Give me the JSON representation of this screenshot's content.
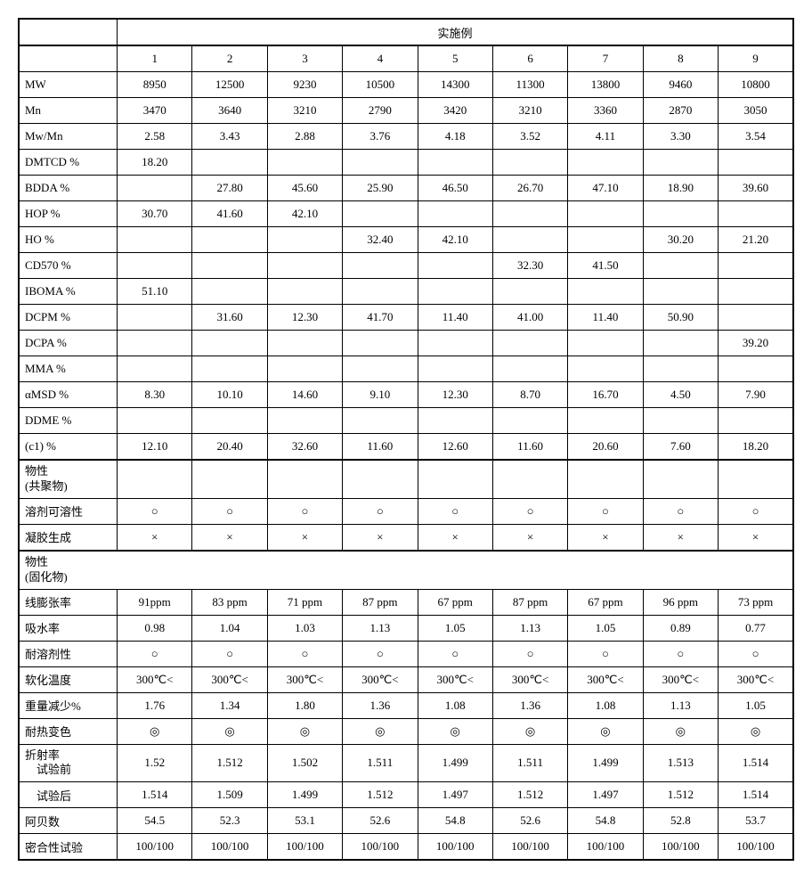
{
  "header": {
    "group_label": "实施例",
    "cols": [
      "1",
      "2",
      "3",
      "4",
      "5",
      "6",
      "7",
      "8",
      "9"
    ]
  },
  "rows": [
    {
      "label": "MW",
      "vals": [
        "8950",
        "12500",
        "9230",
        "10500",
        "14300",
        "11300",
        "13800",
        "9460",
        "10800"
      ]
    },
    {
      "label": "Mn",
      "vals": [
        "3470",
        "3640",
        "3210",
        "2790",
        "3420",
        "3210",
        "3360",
        "2870",
        "3050"
      ]
    },
    {
      "label": "Mw/Mn",
      "vals": [
        "2.58",
        "3.43",
        "2.88",
        "3.76",
        "4.18",
        "3.52",
        "4.11",
        "3.30",
        "3.54"
      ]
    },
    {
      "label": "DMTCD %",
      "vals": [
        "18.20",
        "",
        "",
        "",
        "",
        "",
        "",
        "",
        ""
      ]
    },
    {
      "label": "BDDA %",
      "vals": [
        "",
        "27.80",
        "45.60",
        "25.90",
        "46.50",
        "26.70",
        "47.10",
        "18.90",
        "39.60"
      ]
    },
    {
      "label": "HOP %",
      "vals": [
        "30.70",
        "41.60",
        "42.10",
        "",
        "",
        "",
        "",
        "",
        ""
      ]
    },
    {
      "label": "HO %",
      "vals": [
        "",
        "",
        "",
        "32.40",
        "42.10",
        "",
        "",
        "30.20",
        "21.20"
      ]
    },
    {
      "label": "CD570 %",
      "vals": [
        "",
        "",
        "",
        "",
        "",
        "32.30",
        "41.50",
        "",
        ""
      ]
    },
    {
      "label": "IBOMA %",
      "vals": [
        "51.10",
        "",
        "",
        "",
        "",
        "",
        "",
        "",
        ""
      ]
    },
    {
      "label": "DCPM %",
      "vals": [
        "",
        "31.60",
        "12.30",
        "41.70",
        "11.40",
        "41.00",
        "11.40",
        "50.90",
        ""
      ]
    },
    {
      "label": "DCPA %",
      "vals": [
        "",
        "",
        "",
        "",
        "",
        "",
        "",
        "",
        "39.20"
      ]
    },
    {
      "label": "MMA %",
      "vals": [
        "",
        "",
        "",
        "",
        "",
        "",
        "",
        "",
        ""
      ]
    },
    {
      "label": "αMSD %",
      "vals": [
        "8.30",
        "10.10",
        "14.60",
        "9.10",
        "12.30",
        "8.70",
        "16.70",
        "4.50",
        "7.90"
      ]
    },
    {
      "label": "DDME %",
      "vals": [
        "",
        "",
        "",
        "",
        "",
        "",
        "",
        "",
        ""
      ]
    },
    {
      "label": "(c1)  %",
      "vals": [
        "12.10",
        "20.40",
        "32.60",
        "11.60",
        "12.60",
        "11.60",
        "20.60",
        "7.60",
        "18.20"
      ]
    }
  ],
  "section_copoly": {
    "label_line1": "物性",
    "label_line2": "(共聚物)",
    "rows": [
      {
        "label": "溶剂可溶性",
        "vals": [
          "○",
          "○",
          "○",
          "○",
          "○",
          "○",
          "○",
          "○",
          "○"
        ]
      },
      {
        "label": "凝胶生成",
        "vals": [
          "×",
          "×",
          "×",
          "×",
          "×",
          "×",
          "×",
          "×",
          "×"
        ]
      }
    ]
  },
  "section_cured": {
    "label_line1": "物性",
    "label_line2": "(固化物)",
    "rows": [
      {
        "label": "线膨张率",
        "vals": [
          "91ppm",
          "83 ppm",
          "71 ppm",
          "87 ppm",
          "67 ppm",
          "87 ppm",
          "67 ppm",
          "96 ppm",
          "73 ppm"
        ]
      },
      {
        "label": "吸水率",
        "vals": [
          "0.98",
          "1.04",
          "1.03",
          "1.13",
          "1.05",
          "1.13",
          "1.05",
          "0.89",
          "0.77"
        ]
      },
      {
        "label": "耐溶剂性",
        "vals": [
          "○",
          "○",
          "○",
          "○",
          "○",
          "○",
          "○",
          "○",
          "○"
        ]
      },
      {
        "label": "软化温度",
        "vals": [
          "300℃<",
          "300℃<",
          "300℃<",
          "300℃<",
          "300℃<",
          "300℃<",
          "300℃<",
          "300℃<",
          "300℃<"
        ]
      },
      {
        "label": "重量减少%",
        "vals": [
          "1.76",
          "1.34",
          "1.80",
          "1.36",
          "1.08",
          "1.36",
          "1.08",
          "1.13",
          "1.05"
        ]
      },
      {
        "label": "耐热变色",
        "vals": [
          "◎",
          "◎",
          "◎",
          "◎",
          "◎",
          "◎",
          "◎",
          "◎",
          "◎"
        ]
      }
    ],
    "refraction": {
      "label_line1": "折射率",
      "label_line2": "　试验前",
      "vals_before": [
        "1.52",
        "1.512",
        "1.502",
        "1.511",
        "1.499",
        "1.511",
        "1.499",
        "1.513",
        "1.514"
      ],
      "label_after": "　试验后",
      "vals_after": [
        "1.514",
        "1.509",
        "1.499",
        "1.512",
        "1.497",
        "1.512",
        "1.497",
        "1.512",
        "1.514"
      ]
    },
    "rows2": [
      {
        "label": "阿贝数",
        "vals": [
          "54.5",
          "52.3",
          "53.1",
          "52.6",
          "54.8",
          "52.6",
          "54.8",
          "52.8",
          "53.7"
        ]
      },
      {
        "label": "密合性试验",
        "vals": [
          "100/100",
          "100/100",
          "100/100",
          "100/100",
          "100/100",
          "100/100",
          "100/100",
          "100/100",
          "100/100"
        ]
      }
    ]
  }
}
